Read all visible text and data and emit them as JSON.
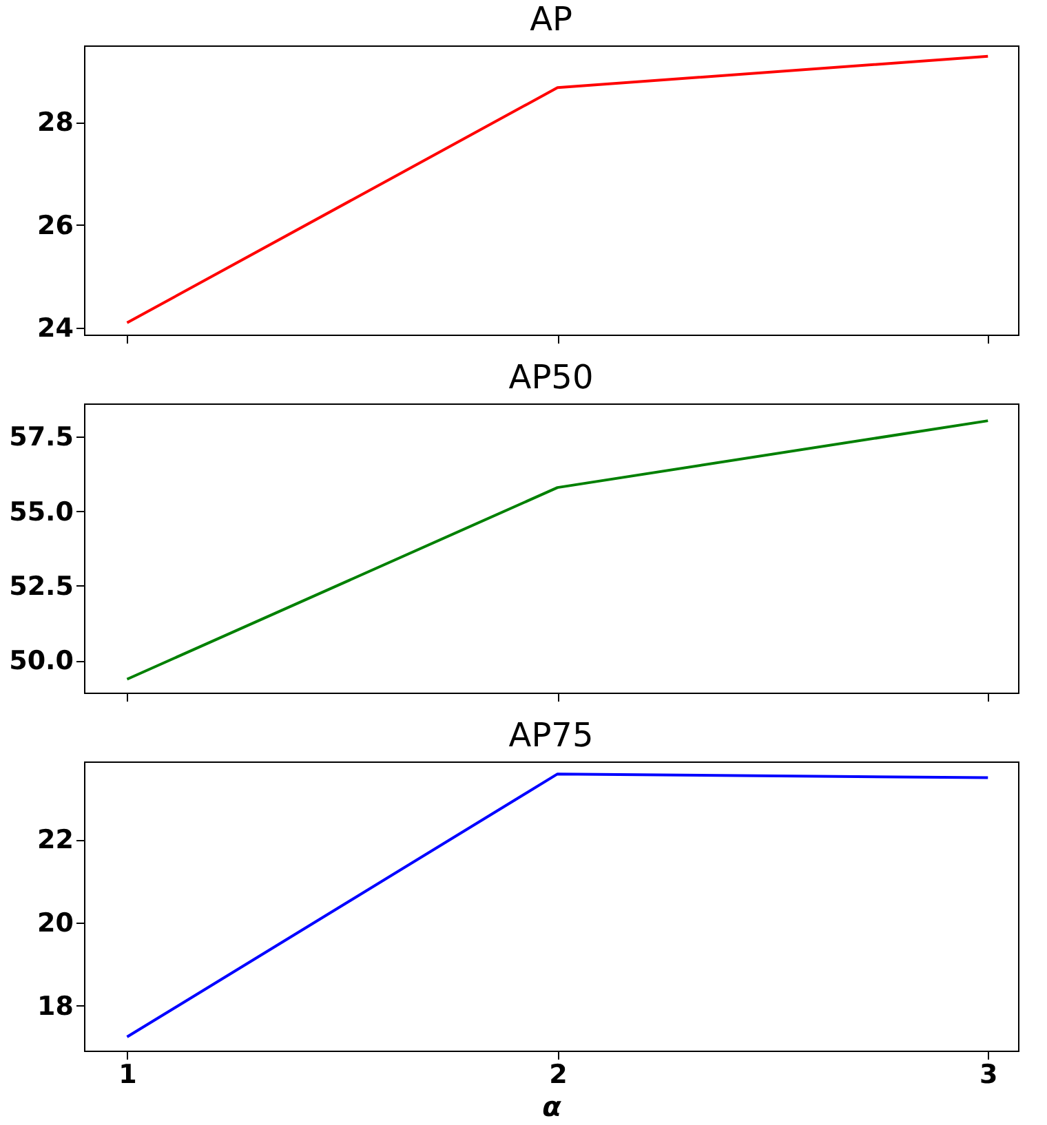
{
  "chart_data": [
    {
      "type": "line",
      "title": "AP",
      "x": [
        1,
        2,
        3
      ],
      "series": [
        {
          "color": "#ff0000",
          "values": [
            24.1,
            28.67,
            29.28
          ]
        }
      ],
      "xlim": [
        0.9,
        3.07
      ],
      "xticks": [
        1,
        2,
        3
      ],
      "ylim": [
        23.87,
        29.49
      ],
      "yticks": [
        24,
        26,
        28
      ],
      "tick_labels": "y"
    },
    {
      "type": "line",
      "title": "AP50",
      "x": [
        1,
        2,
        3
      ],
      "series": [
        {
          "color": "#008000",
          "values": [
            49.37,
            55.8,
            58.04
          ]
        }
      ],
      "xlim": [
        0.9,
        3.07
      ],
      "xticks": [
        1,
        2,
        3
      ],
      "ylim": [
        48.92,
        58.62
      ],
      "yticks": [
        {
          "value": 50,
          "label": "50.0"
        },
        {
          "value": 52.5,
          "label": "52.5"
        },
        {
          "value": 55,
          "label": "55.0"
        },
        {
          "value": 57.5,
          "label": "57.5"
        }
      ],
      "tick_labels": "y"
    },
    {
      "type": "line",
      "title": "AP75",
      "x": [
        1,
        2,
        3
      ],
      "xlabel": "α",
      "series": [
        {
          "color": "#0000ff",
          "values": [
            17.25,
            23.57,
            23.48
          ]
        }
      ],
      "xlim": [
        0.9,
        3.07
      ],
      "xticks": [
        1,
        2,
        3
      ],
      "ylim": [
        16.92,
        23.87
      ],
      "yticks": [
        18,
        20,
        22
      ]
    }
  ]
}
